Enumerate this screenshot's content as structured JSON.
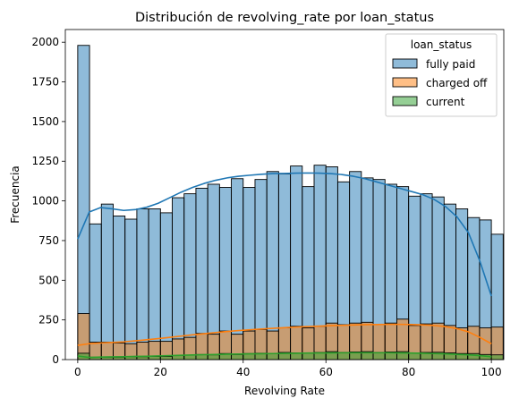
{
  "chart_data": {
    "type": "bar",
    "stacked": true,
    "title": "Distribución de revolving_rate por loan_status",
    "xlabel": "Revolving Rate",
    "ylabel": "Frecuencia",
    "xlim": [
      -3,
      103
    ],
    "ylim": [
      0,
      2080
    ],
    "x_ticks": [
      0,
      20,
      40,
      60,
      80,
      100
    ],
    "y_ticks": [
      0,
      250,
      500,
      750,
      1000,
      1250,
      1500,
      1750,
      2000
    ],
    "bin_width": 2.857,
    "bin_edges_start": 0,
    "legend": {
      "title": "loan_status",
      "placement": "top-right"
    },
    "series": [
      {
        "name": "fully paid",
        "color": "#1f77b4",
        "totals": [
          1980,
          855,
          980,
          905,
          885,
          950,
          950,
          925,
          1020,
          1045,
          1080,
          1105,
          1085,
          1140,
          1085,
          1135,
          1185,
          1170,
          1220,
          1090,
          1225,
          1215,
          1120,
          1185,
          1145,
          1135,
          1105,
          1090,
          1030,
          1045,
          1025,
          980,
          950,
          895,
          880,
          790
        ],
        "kde": [
          760,
          930,
          958,
          950,
          940,
          945,
          960,
          985,
          1020,
          1055,
          1085,
          1110,
          1130,
          1145,
          1155,
          1162,
          1168,
          1172,
          1173,
          1175,
          1176,
          1175,
          1172,
          1166,
          1155,
          1140,
          1120,
          1100,
          1080,
          1060,
          1040,
          1010,
          965,
          900,
          800,
          620,
          400
        ]
      },
      {
        "name": "charged off",
        "color": "#ff7f0e",
        "totals": [
          290,
          110,
          110,
          105,
          100,
          110,
          115,
          115,
          130,
          140,
          165,
          160,
          180,
          160,
          180,
          190,
          180,
          200,
          210,
          200,
          210,
          230,
          220,
          230,
          235,
          220,
          230,
          255,
          215,
          225,
          230,
          215,
          200,
          210,
          200,
          205
        ],
        "kde": [
          90,
          100,
          105,
          108,
          112,
          118,
          125,
          132,
          140,
          148,
          156,
          163,
          170,
          177,
          183,
          188,
          193,
          197,
          201,
          205,
          208,
          211,
          214,
          216,
          218,
          220,
          221,
          222,
          222,
          221,
          219,
          215,
          208,
          195,
          175,
          140,
          100
        ]
      },
      {
        "name": "current",
        "color": "#2ca02c",
        "totals": [
          40,
          15,
          15,
          15,
          18,
          18,
          20,
          20,
          25,
          28,
          32,
          30,
          38,
          32,
          38,
          40,
          38,
          45,
          42,
          40,
          45,
          50,
          45,
          48,
          50,
          45,
          48,
          50,
          42,
          45,
          46,
          42,
          38,
          38,
          32,
          30
        ],
        "kde": [
          22,
          14,
          16,
          17,
          18,
          20,
          21,
          23,
          25,
          27,
          29,
          31,
          32,
          34,
          35,
          36,
          37,
          38,
          39,
          40,
          41,
          42,
          42,
          43,
          43,
          43,
          43,
          43,
          42,
          41,
          40,
          38,
          36,
          33,
          30,
          25,
          18
        ]
      }
    ]
  }
}
